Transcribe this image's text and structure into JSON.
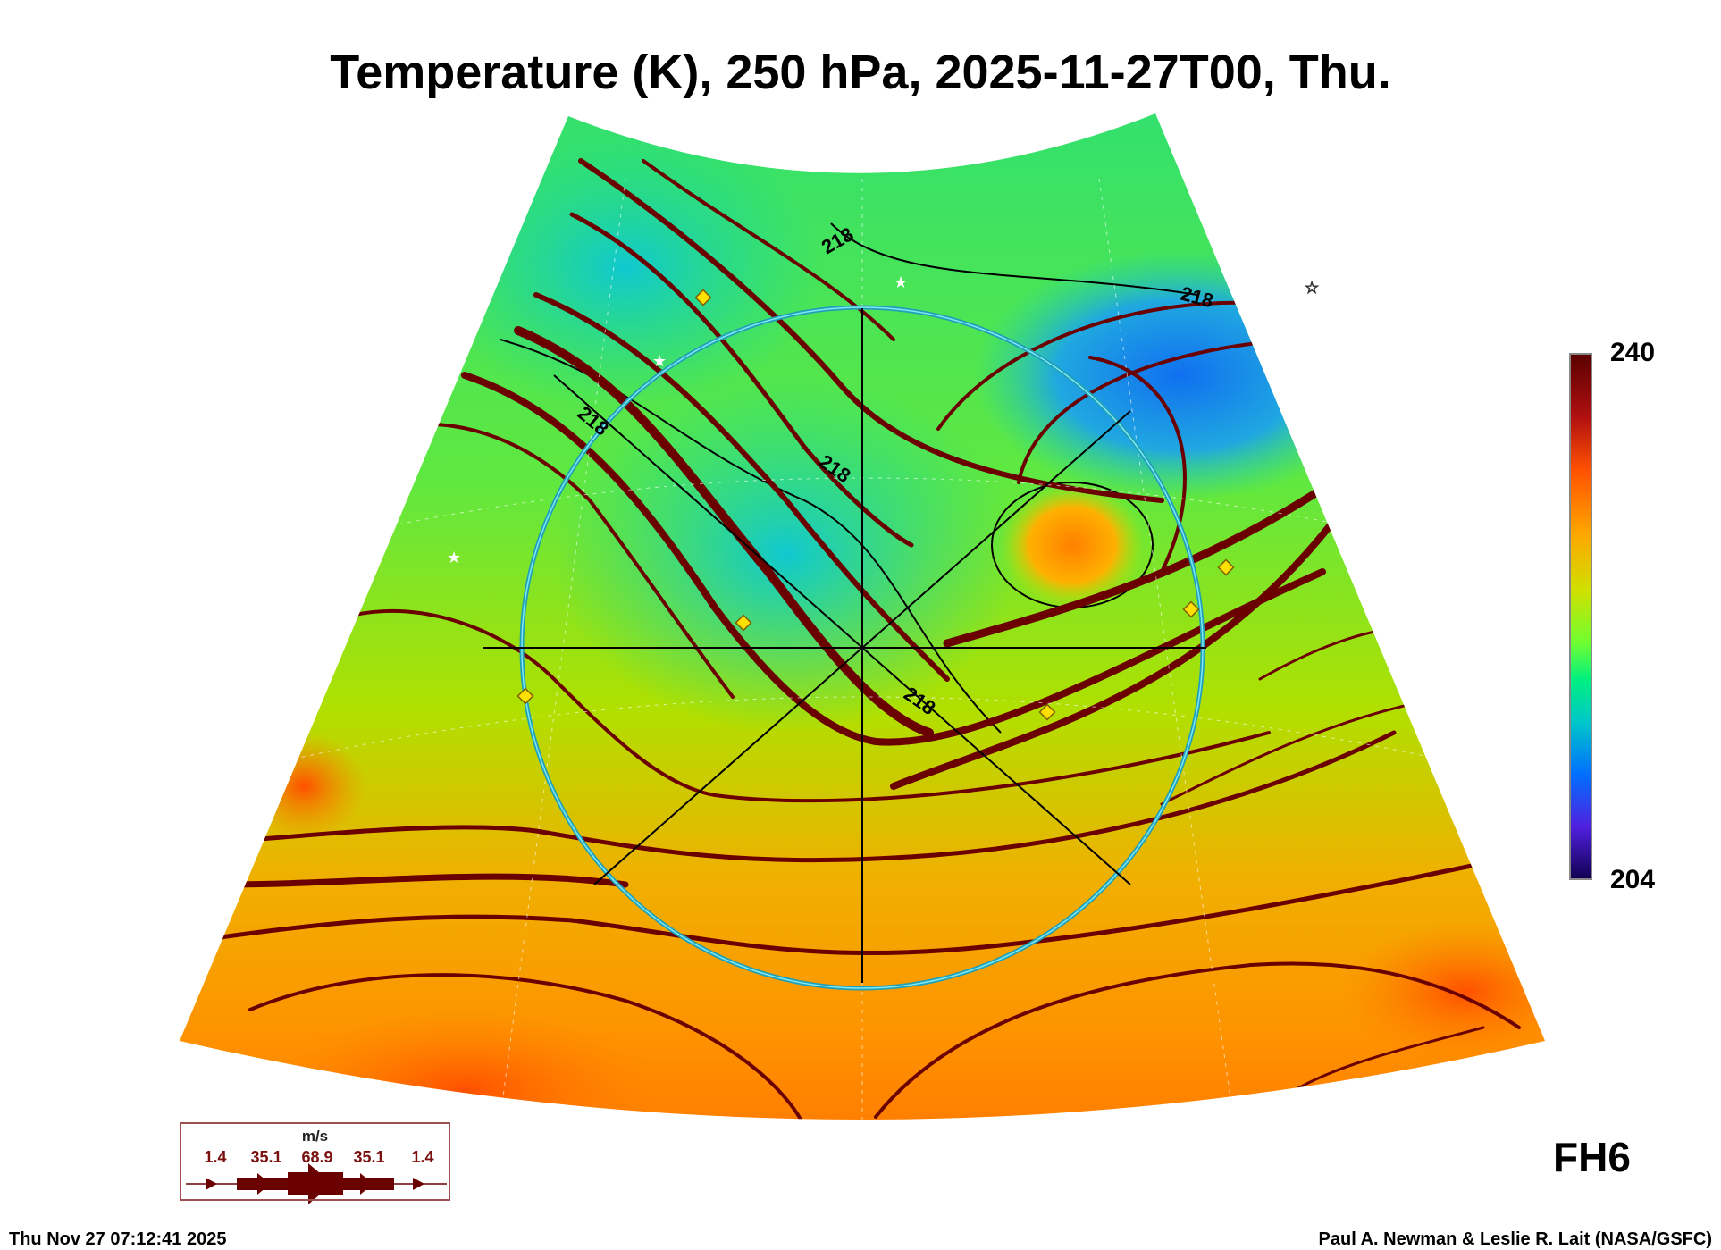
{
  "title": "Temperature (K), 250 hPa, 2025-11-27T00, Thu.",
  "colorbar": {
    "max": "240",
    "min": "204",
    "units": "K"
  },
  "contour_labels": [
    "218",
    "218",
    "218",
    "218",
    "218"
  ],
  "legend": {
    "unit": "m/s",
    "values": [
      "1.4",
      "35.1",
      "68.9",
      "35.1",
      "1.4"
    ]
  },
  "forecast_hour": "FH6",
  "footer": {
    "timestamp": "Thu Nov 27 07:12:41 2025",
    "credit": "Paul A. Newman & Leslie R. Lait (NASA/GSFC)"
  },
  "colors": {
    "streamline": "#6b0000",
    "ring": "#30b8d0",
    "marker": "#ffe000"
  }
}
